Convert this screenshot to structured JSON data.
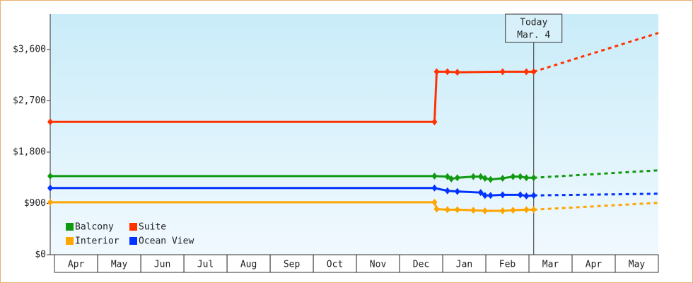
{
  "chart_data": {
    "type": "line",
    "xlim": [
      -0.1,
      14
    ],
    "xticks": [
      {
        "value": 0.5,
        "label": "Apr"
      },
      {
        "value": 1.5,
        "label": "May"
      },
      {
        "value": 2.5,
        "label": "Jun"
      },
      {
        "value": 3.5,
        "label": "Jul"
      },
      {
        "value": 4.5,
        "label": "Aug"
      },
      {
        "value": 5.5,
        "label": "Sep"
      },
      {
        "value": 6.5,
        "label": "Oct"
      },
      {
        "value": 7.5,
        "label": "Nov"
      },
      {
        "value": 8.5,
        "label": "Dec"
      },
      {
        "value": 9.5,
        "label": "Jan"
      },
      {
        "value": 10.5,
        "label": "Feb"
      },
      {
        "value": 11.5,
        "label": "Mar"
      },
      {
        "value": 12.5,
        "label": "Apr"
      },
      {
        "value": 13.5,
        "label": "May"
      }
    ],
    "ylim": [
      0,
      4220
    ],
    "yticks": [
      {
        "value": 0,
        "label": "$0"
      },
      {
        "value": 900,
        "label": "$900"
      },
      {
        "value": 1800,
        "label": "$1,800"
      },
      {
        "value": 2700,
        "label": "$2,700"
      },
      {
        "value": 3600,
        "label": "$3,600"
      }
    ],
    "annotation": {
      "x": 11.11,
      "lines": [
        "Today",
        "Mar. 4"
      ]
    },
    "series": [
      {
        "name": "Balcony",
        "color": "#119911",
        "x": [
          -0.1,
          8.81,
          9.11,
          9.2,
          9.34,
          9.71,
          9.88,
          9.98,
          10.11,
          10.39,
          10.63,
          10.8,
          10.94,
          11.11
        ],
        "values": [
          1380,
          1380,
          1370,
          1330,
          1350,
          1370,
          1370,
          1340,
          1320,
          1340,
          1370,
          1370,
          1350,
          1350
        ],
        "forecast_x": [
          11.11,
          14
        ],
        "forecast_values": [
          1350,
          1480
        ]
      },
      {
        "name": "Suite",
        "color": "#ff3300",
        "x": [
          -0.1,
          8.81,
          8.86,
          9.11,
          9.34,
          10.39,
          10.94,
          11.11
        ],
        "values": [
          2330,
          2330,
          3210,
          3210,
          3200,
          3210,
          3210,
          3210
        ],
        "forecast_x": [
          11.11,
          14
        ],
        "forecast_values": [
          3210,
          3890
        ]
      },
      {
        "name": "Interior",
        "color": "#ffa500",
        "x": [
          -0.1,
          8.81,
          8.86,
          9.11,
          9.34,
          9.71,
          9.98,
          10.39,
          10.63,
          10.94,
          11.11
        ],
        "values": [
          920,
          920,
          800,
          790,
          790,
          780,
          770,
          770,
          780,
          790,
          790
        ],
        "forecast_x": [
          11.11,
          14
        ],
        "forecast_values": [
          790,
          910
        ]
      },
      {
        "name": "Ocean View",
        "color": "#0033ff",
        "x": [
          -0.1,
          8.81,
          9.11,
          9.34,
          9.88,
          9.98,
          10.11,
          10.39,
          10.8,
          10.94,
          11.11
        ],
        "values": [
          1170,
          1170,
          1120,
          1110,
          1090,
          1040,
          1040,
          1050,
          1050,
          1030,
          1040
        ],
        "forecast_x": [
          11.11,
          14
        ],
        "forecast_values": [
          1040,
          1070
        ]
      }
    ]
  }
}
